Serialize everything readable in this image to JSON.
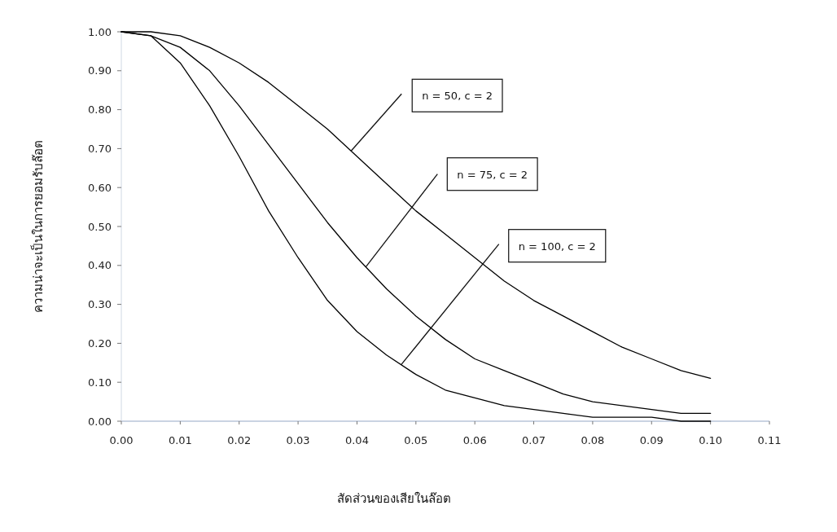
{
  "chart_data": {
    "type": "line",
    "xlabel": "สัดส่วนของเสียในล๊อต",
    "ylabel": "ความน่าจะเป็นในการยอมรับล๊อต",
    "x": [
      0,
      0.005,
      0.01,
      0.015,
      0.02,
      0.025,
      0.03,
      0.035,
      0.04,
      0.045,
      0.05,
      0.055,
      0.06,
      0.065,
      0.07,
      0.075,
      0.08,
      0.085,
      0.09,
      0.095,
      0.1
    ],
    "series": [
      {
        "color": "#000000",
        "values": [
          1.0,
          1.0,
          0.99,
          0.96,
          0.92,
          0.87,
          0.81,
          0.75,
          0.68,
          0.61,
          0.54,
          0.48,
          0.42,
          0.36,
          0.31,
          0.27,
          0.23,
          0.19,
          0.16,
          0.13,
          0.11
        ]
      },
      {
        "color": "#000000",
        "values": [
          1.0,
          0.99,
          0.96,
          0.9,
          0.81,
          0.71,
          0.61,
          0.51,
          0.42,
          0.34,
          0.27,
          0.21,
          0.16,
          0.13,
          0.1,
          0.07,
          0.05,
          0.04,
          0.03,
          0.02,
          0.02
        ]
      },
      {
        "color": "#000000",
        "values": [
          1.0,
          0.99,
          0.92,
          0.81,
          0.68,
          0.54,
          0.42,
          0.31,
          0.23,
          0.17,
          0.12,
          0.08,
          0.06,
          0.04,
          0.03,
          0.02,
          0.01,
          0.01,
          0.01,
          0.0,
          0.0
        ]
      }
    ],
    "xlim": [
      0,
      0.11
    ],
    "ylim": [
      0,
      1
    ],
    "xticks": [
      {
        "value": 0,
        "label": "0.00"
      },
      {
        "value": 0.01,
        "label": "0.01"
      },
      {
        "value": 0.02,
        "label": "0.02"
      },
      {
        "value": 0.03,
        "label": "0.03"
      },
      {
        "value": 0.04,
        "label": "0.04"
      },
      {
        "value": 0.05,
        "label": "0.05"
      },
      {
        "value": 0.06,
        "label": "0.06"
      },
      {
        "value": 0.07,
        "label": "0.07"
      },
      {
        "value": 0.08,
        "label": "0.08"
      },
      {
        "value": 0.09,
        "label": "0.09"
      },
      {
        "value": 0.1,
        "label": "0.10"
      },
      {
        "value": 0.11,
        "label": "0.11"
      }
    ],
    "yticks": [
      {
        "value": 0,
        "label": "0.00"
      },
      {
        "value": 0.1,
        "label": "0.10"
      },
      {
        "value": 0.2,
        "label": "0.20"
      },
      {
        "value": 0.3,
        "label": "0.30"
      },
      {
        "value": 0.4,
        "label": "0.40"
      },
      {
        "value": 0.5,
        "label": "0.50"
      },
      {
        "value": 0.6,
        "label": "0.60"
      },
      {
        "value": 0.7,
        "label": "0.70"
      },
      {
        "value": 0.8,
        "label": "0.80"
      },
      {
        "value": 0.9,
        "label": "0.90"
      },
      {
        "value": 1,
        "label": "1.00"
      }
    ],
    "annotations": [
      "n = 50, c = 2",
      "n = 75, c = 2",
      "n = 100, c = 2"
    ],
    "grid": false,
    "marker": "none",
    "line_style": "solid"
  }
}
